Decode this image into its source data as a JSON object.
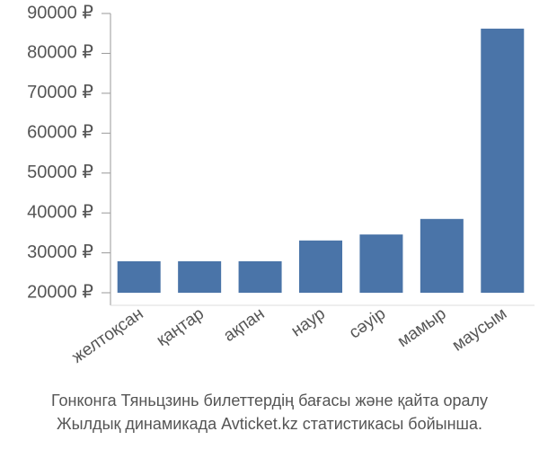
{
  "chart_data": {
    "type": "bar",
    "categories": [
      "желтоқсан",
      "қаңтар",
      "ақпан",
      "наур",
      "сәуір",
      "мамыр",
      "маусым"
    ],
    "values": [
      27900,
      27900,
      27900,
      33100,
      34600,
      38500,
      86200
    ],
    "color": "#4a74a8",
    "ylim": [
      20000,
      90000
    ],
    "yticks": [
      {
        "value": 20000,
        "label": "20000 ₽"
      },
      {
        "value": 30000,
        "label": "30000 ₽"
      },
      {
        "value": 40000,
        "label": "40000 ₽"
      },
      {
        "value": 50000,
        "label": "50000 ₽"
      },
      {
        "value": 60000,
        "label": "60000 ₽"
      },
      {
        "value": 70000,
        "label": "70000 ₽"
      },
      {
        "value": 80000,
        "label": "80000 ₽"
      },
      {
        "value": 90000,
        "label": "90000 ₽"
      }
    ],
    "caption": [
      "Гонконга Тяньцзинь билеттердің бағасы және қайта оралу",
      "Жылдық динамикада Avticket.kz статистикасы бойынша."
    ]
  }
}
